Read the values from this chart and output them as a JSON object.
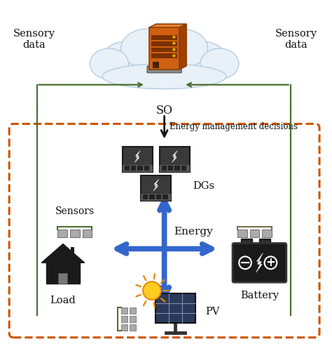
{
  "bg_color": "#ffffff",
  "cloud_color": "#e8f0f8",
  "cloud_edge_color": "#b0c8e0",
  "dashed_box_color": "#cc5500",
  "arrow_blue": "#3366cc",
  "arrow_green": "#4a7030",
  "arrow_black": "#111111",
  "text_black": "#111111",
  "sensory_left": "Sensory\ndata",
  "sensory_right": "Sensory\ndata",
  "so_label": "SO",
  "energy_decision_label": "Energy management decisions",
  "dgs_label": "DGs",
  "sensors_label": "Sensors",
  "energy_label": "Energy",
  "load_label": "Load",
  "battery_label": "Battery",
  "pv_label": "PV",
  "font_size_main": 10.5,
  "font_size_label": 10
}
